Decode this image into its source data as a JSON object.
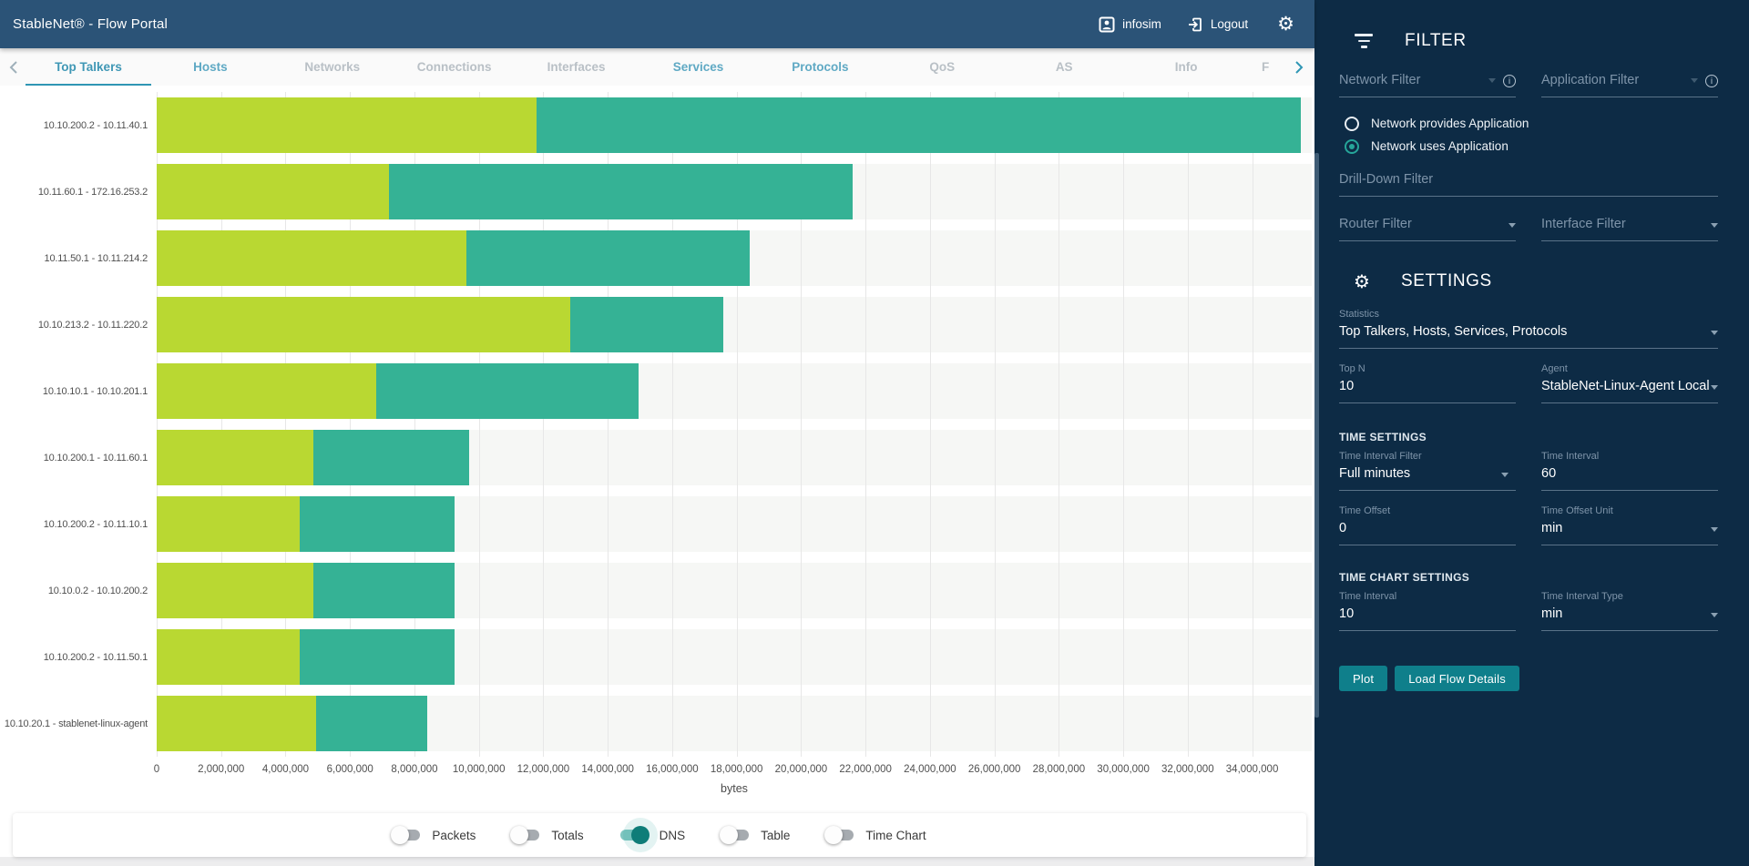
{
  "header": {
    "title": "StableNet® - Flow Portal",
    "user_label": "infosim",
    "logout_label": "Logout"
  },
  "tabs": {
    "items": [
      {
        "label": "Top Talkers",
        "state": "active"
      },
      {
        "label": "Hosts",
        "state": "enabled"
      },
      {
        "label": "Networks",
        "state": "disabled"
      },
      {
        "label": "Connections",
        "state": "disabled"
      },
      {
        "label": "Interfaces",
        "state": "disabled"
      },
      {
        "label": "Services",
        "state": "enabled"
      },
      {
        "label": "Protocols",
        "state": "enabled"
      },
      {
        "label": "QoS",
        "state": "disabled"
      },
      {
        "label": "AS",
        "state": "disabled"
      },
      {
        "label": "Info",
        "state": "disabled"
      },
      {
        "label": "F",
        "state": "disabled",
        "truncated": true
      }
    ]
  },
  "chart_data": {
    "type": "bar",
    "orientation": "horizontal",
    "stacked": true,
    "title": "",
    "xlabel": "bytes",
    "ylabel": "",
    "grid": true,
    "xlim": [
      0,
      35850000
    ],
    "x_ticks": [
      0,
      2000000,
      4000000,
      6000000,
      8000000,
      10000000,
      12000000,
      14000000,
      16000000,
      18000000,
      20000000,
      22000000,
      24000000,
      26000000,
      28000000,
      30000000,
      32000000,
      34000000
    ],
    "categories": [
      "10.10.200.2 - 10.11.40.1",
      "10.11.60.1 - 172.16.253.2",
      "10.11.50.1 - 10.11.214.2",
      "10.10.213.2 - 10.11.220.2",
      "10.10.10.1 - 10.10.201.1",
      "10.10.200.1 - 10.11.60.1",
      "10.10.200.2 - 10.11.10.1",
      "10.10.0.2 - 10.10.200.2",
      "10.10.200.2 - 10.11.50.1",
      "10.10.20.1 - stablenet-linux-agent"
    ],
    "series": [
      {
        "name": "green",
        "color": "#b9d832",
        "values": [
          11800000,
          7200000,
          9600000,
          12850000,
          6800000,
          4850000,
          4450000,
          4850000,
          4450000,
          4950000
        ]
      },
      {
        "name": "teal",
        "color": "#35b295",
        "values": [
          23700000,
          14400000,
          8800000,
          4750000,
          8150000,
          4850000,
          4800000,
          4400000,
          4800000,
          3450000
        ]
      }
    ]
  },
  "footer": {
    "toggles": [
      {
        "label": "Packets",
        "on": false
      },
      {
        "label": "Totals",
        "on": false
      },
      {
        "label": "DNS",
        "on": true
      },
      {
        "label": "Table",
        "on": false
      },
      {
        "label": "Time Chart",
        "on": false
      }
    ]
  },
  "sidebar": {
    "filter": {
      "title": "FILTER",
      "network_filter_placeholder": "Network Filter",
      "application_filter_placeholder": "Application Filter",
      "radios": [
        {
          "label": "Network provides Application",
          "selected": false
        },
        {
          "label": "Network uses Application",
          "selected": true
        }
      ],
      "drilldown_placeholder": "Drill-Down Filter",
      "router_filter_placeholder": "Router Filter",
      "interface_filter_placeholder": "Interface Filter"
    },
    "settings": {
      "title": "SETTINGS",
      "statistics_label": "Statistics",
      "statistics_value": "Top Talkers, Hosts, Services, Protocols",
      "topn_label": "Top N",
      "topn_value": "10",
      "agent_label": "Agent",
      "agent_value": "StableNet-Linux-Agent Local",
      "time_settings_title": "TIME SETTINGS",
      "time_interval_filter_label": "Time Interval Filter",
      "time_interval_filter_value": "Full minutes",
      "time_interval_label": "Time Interval",
      "time_interval_value": "60",
      "time_offset_label": "Time Offset",
      "time_offset_value": "0",
      "time_offset_unit_label": "Time Offset Unit",
      "time_offset_unit_value": "min",
      "time_chart_settings_title": "TIME CHART SETTINGS",
      "tc_time_interval_label": "Time Interval",
      "tc_time_interval_value": "10",
      "tc_time_interval_type_label": "Time Interval Type",
      "tc_time_interval_type_value": "min",
      "plot_button": "Plot",
      "load_flow_details_button": "Load Flow Details"
    }
  },
  "colors": {
    "header_bg": "#2b5377",
    "sidebar_bg": "#0d2b45",
    "accent_teal": "#26a69a",
    "button_teal": "#0f7f8b",
    "bar_green": "#b9d832",
    "bar_teal": "#35b295",
    "tab_active": "#3f97b5",
    "toggle_on_knob": "#0e7d78"
  }
}
